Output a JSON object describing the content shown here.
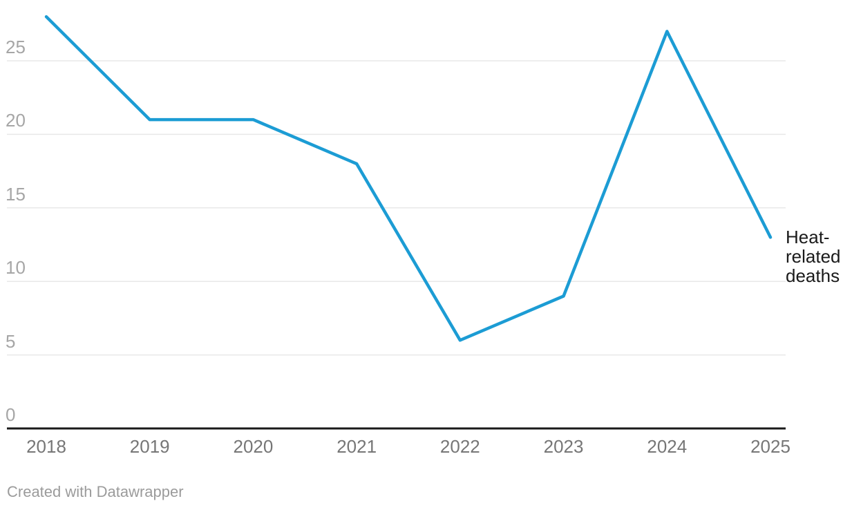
{
  "chart_data": {
    "type": "line",
    "x": [
      2018,
      2019,
      2020,
      2021,
      2022,
      2023,
      2024,
      2025
    ],
    "series": [
      {
        "name": "Heat-related deaths",
        "values": [
          28,
          21,
          21,
          18,
          6,
          9,
          27,
          13
        ],
        "color": "#1c9cd4",
        "label_lines": [
          "Heat-",
          "related",
          "deaths"
        ]
      }
    ],
    "title": "",
    "xlabel": "",
    "ylabel": "",
    "y_ticks": [
      0,
      5,
      10,
      15,
      20,
      25
    ],
    "ylim": [
      0,
      29.1
    ],
    "grid": "horizontal gridlines on, dark baseline at 0",
    "legend_position": "direct label right of line end"
  },
  "attribution": "Created with Datawrapper",
  "colors": {
    "line": "#1c9cd4",
    "gridline": "#e8e8e8",
    "axis_line": "#1a1a1a",
    "y_tick_label": "#a6a6a6",
    "x_tick_label": "#767676",
    "series_label": "#1a1a1a",
    "attribution": "#9b9b9b",
    "background": "#ffffff"
  }
}
